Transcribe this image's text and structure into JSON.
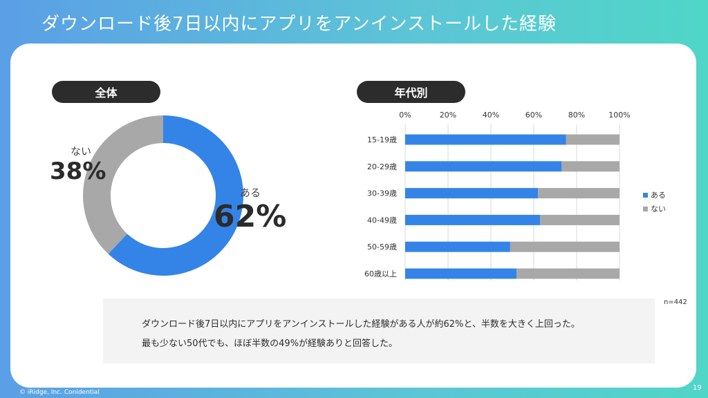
{
  "slide": {
    "title": "ダウンロード後7日以内にアプリをアンインストールした経験",
    "footer": "© iRidge, Inc. Conidential",
    "page_number": "19",
    "note": "n=442"
  },
  "sections": {
    "overall_label": "全体",
    "by_age_label": "年代別"
  },
  "donut": {
    "yes_label": "ある",
    "yes_value": "62%",
    "no_label": "ない",
    "no_value": "38%"
  },
  "summary": {
    "line1": "ダウンロード後7日以内にアプリをアンインストールした経験がある人が約62%と、半数を大きく上回った。",
    "line2": "最も少ない50代でも、ほぼ半数の49%が経験ありと回答した。"
  },
  "chart_data": [
    {
      "type": "pie",
      "labels": [
        "ある",
        "ない"
      ],
      "values": [
        62,
        38
      ],
      "colors": [
        "#3484e8",
        "#a8a8a8"
      ],
      "donut": true
    },
    {
      "type": "bar",
      "orientation": "horizontal",
      "stacked": true,
      "categories": [
        "15-19歳",
        "20-29歳",
        "30-39歳",
        "40-49歳",
        "50-59歳",
        "60歳以上"
      ],
      "series": [
        {
          "name": "ある",
          "values": [
            75,
            73,
            62,
            63,
            49,
            52
          ],
          "color": "#3484e8"
        },
        {
          "name": "ない",
          "values": [
            25,
            27,
            38,
            37,
            51,
            48
          ],
          "color": "#a8a8a8"
        }
      ],
      "x_ticks": [
        "0%",
        "20%",
        "40%",
        "60%",
        "80%",
        "100%"
      ],
      "xlim": [
        0,
        100
      ],
      "grid": true,
      "legend": "right"
    }
  ]
}
